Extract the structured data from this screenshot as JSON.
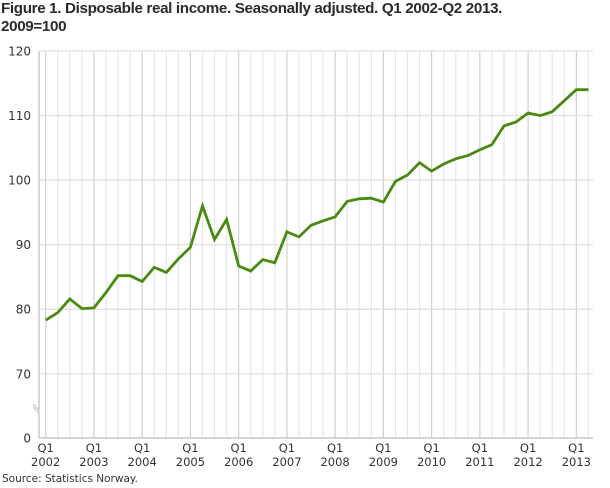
{
  "title_line1": "Figure 1. Disposable real income. Seasonally adjusted.  Q1 2002-Q2 2013.",
  "title_line2": "2009=100",
  "source": "Source: Statistics Norway.",
  "colors": {
    "line": "#4a8a12",
    "grid_major": "#cfcfcf",
    "grid_minor": "#e6e6e6",
    "axis": "#bdbdbd"
  },
  "chart_data": {
    "type": "line",
    "title": "Figure 1. Disposable real income. Seasonally adjusted. Q1 2002-Q2 2013. 2009=100",
    "xlabel": "",
    "ylabel": "",
    "ylim": [
      0,
      120
    ],
    "y_axis_break": [
      0,
      70
    ],
    "yticks": [
      0,
      70,
      80,
      90,
      100,
      110,
      120
    ],
    "grid": true,
    "legend": null,
    "x_tick_labels": [
      "Q1 2002",
      "Q1 2003",
      "Q1 2004",
      "Q1 2005",
      "Q1 2006",
      "Q1 2007",
      "Q1 2008",
      "Q1 2009",
      "Q1 2010",
      "Q1 2011",
      "Q1 2012",
      "Q1 2013"
    ],
    "x": [
      "2002Q1",
      "2002Q2",
      "2002Q3",
      "2002Q4",
      "2003Q1",
      "2003Q2",
      "2003Q3",
      "2003Q4",
      "2004Q1",
      "2004Q2",
      "2004Q3",
      "2004Q4",
      "2005Q1",
      "2005Q2",
      "2005Q3",
      "2005Q4",
      "2006Q1",
      "2006Q2",
      "2006Q3",
      "2006Q4",
      "2007Q1",
      "2007Q2",
      "2007Q3",
      "2007Q4",
      "2008Q1",
      "2008Q2",
      "2008Q3",
      "2008Q4",
      "2009Q1",
      "2009Q2",
      "2009Q3",
      "2009Q4",
      "2010Q1",
      "2010Q2",
      "2010Q3",
      "2010Q4",
      "2011Q1",
      "2011Q2",
      "2011Q3",
      "2011Q4",
      "2012Q1",
      "2012Q2",
      "2012Q3",
      "2012Q4",
      "2013Q1",
      "2013Q2"
    ],
    "series": [
      {
        "name": "Disposable real income",
        "values": [
          78.3,
          79.5,
          81.6,
          80.1,
          80.2,
          82.6,
          85.2,
          85.2,
          84.3,
          86.5,
          85.7,
          87.8,
          89.6,
          96.0,
          90.8,
          93.9,
          86.7,
          85.9,
          87.7,
          87.2,
          92.0,
          91.2,
          93.0,
          93.7,
          94.3,
          96.7,
          97.1,
          97.2,
          96.6,
          99.8,
          100.8,
          102.7,
          101.4,
          102.5,
          103.3,
          103.8,
          104.7,
          105.5,
          108.4,
          109.0,
          110.4,
          110.0,
          110.6,
          112.3,
          114.0,
          114.0
        ]
      }
    ]
  }
}
